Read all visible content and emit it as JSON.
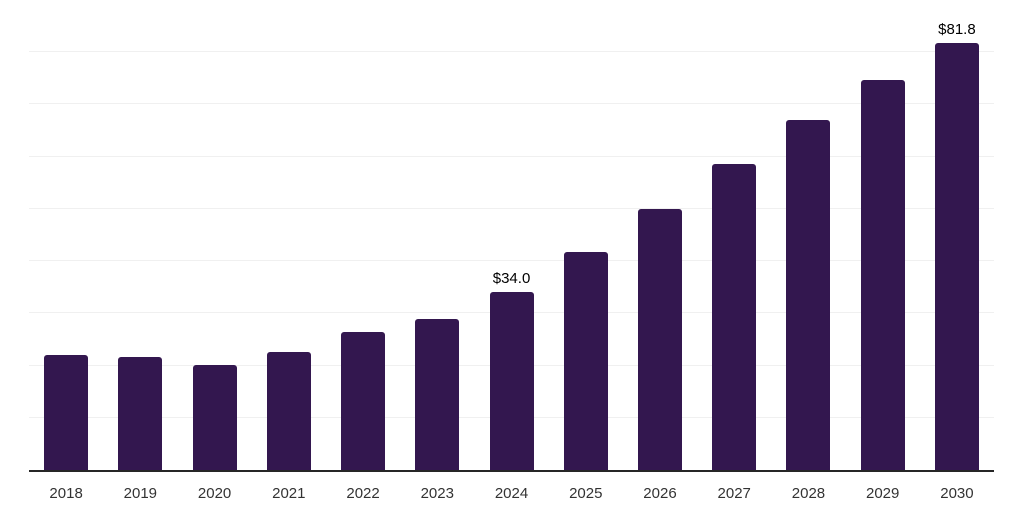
{
  "chart_data": {
    "type": "bar",
    "title": "",
    "xlabel": "",
    "ylabel": "",
    "categories": [
      "2018",
      "2019",
      "2020",
      "2021",
      "2022",
      "2023",
      "2024",
      "2025",
      "2026",
      "2027",
      "2028",
      "2029",
      "2030"
    ],
    "values": [
      22.0,
      21.6,
      20.2,
      22.7,
      26.4,
      28.9,
      34.0,
      41.8,
      50.0,
      58.7,
      67.0,
      74.6,
      81.8
    ],
    "data_labels": {
      "2024": "$34.0",
      "2030": "$81.8"
    },
    "ylim": [
      0,
      90
    ],
    "gridline_interval": 10,
    "grid_visible": true,
    "legend_position": "none",
    "colors": {
      "bar": "#33174f",
      "gridline": "#f0f0f0",
      "axis_line": "#262626",
      "value_label": "#000000",
      "tick_label": "#333333"
    }
  }
}
